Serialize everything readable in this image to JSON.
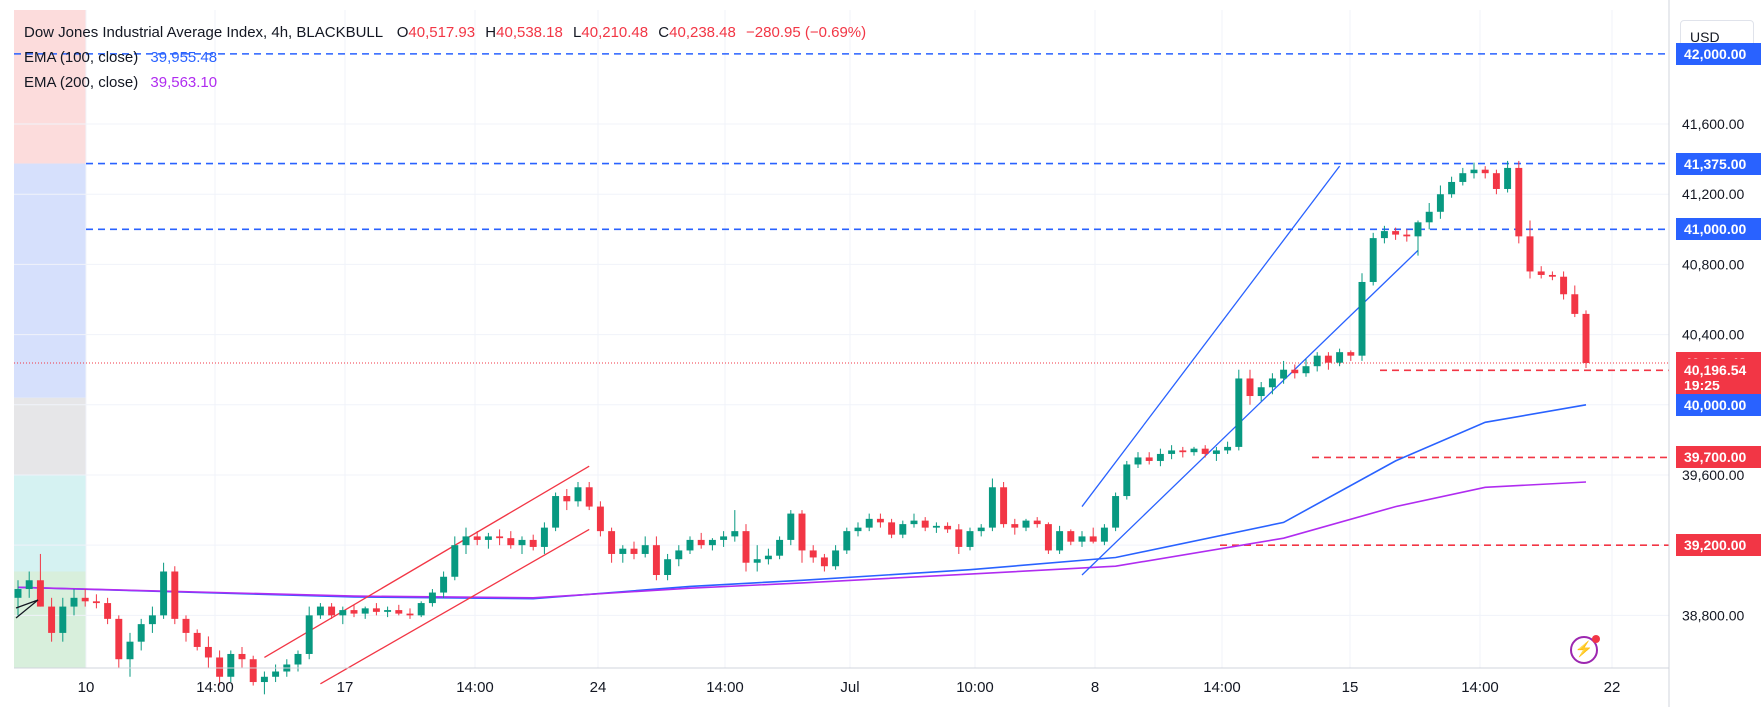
{
  "header": {
    "symbol": "Dow Jones Industrial Average Index, 4h, BLACKBULL",
    "open_key": "O",
    "open": "40,517.93",
    "high_key": "H",
    "high": "40,538.18",
    "low_key": "L",
    "low": "40,210.48",
    "close_key": "C",
    "close": "40,238.48",
    "change": "−280.95 (−0.69%)",
    "ema100_label": "EMA (100, close)",
    "ema100_value": "39,955.48",
    "ema200_label": "EMA (200, close)",
    "ema200_value": "39,563.10"
  },
  "currency": "USD",
  "countdown": "19:25",
  "chart_data": {
    "type": "candlestick",
    "y_axis_ticks": [
      "41,600.00",
      "41,200.00",
      "40,800.00",
      "40,400.00",
      "40,000.00",
      "39,600.00",
      "38,800.00"
    ],
    "x_axis_ticks": [
      "10",
      "14:00",
      "17",
      "14:00",
      "24",
      "14:00",
      "Jul",
      "10:00",
      "8",
      "14:00",
      "15",
      "14:00",
      "22"
    ],
    "ylim": [
      38500,
      42250
    ],
    "grid": true,
    "price_levels": [
      {
        "label": "42,000.00",
        "value": 42000,
        "color": "blue"
      },
      {
        "label": "41,375.00",
        "value": 41375,
        "color": "blue"
      },
      {
        "label": "41,000.00",
        "value": 41000,
        "color": "blue"
      },
      {
        "label": "40,238.48",
        "value": 40238.48,
        "color": "red"
      },
      {
        "label": "40,196.54",
        "value": 40196.54,
        "color": "red"
      },
      {
        "label": "40,000.00",
        "value": 40000,
        "color": "blue"
      },
      {
        "label": "39,700.00",
        "value": 39700,
        "color": "red"
      },
      {
        "label": "39,200.00",
        "value": 39200,
        "color": "red"
      }
    ],
    "candles": [
      [
        38900,
        39000,
        38800,
        38950
      ],
      [
        38950,
        39050,
        38900,
        39000
      ],
      [
        39000,
        39150,
        38850,
        38850
      ],
      [
        38850,
        38900,
        38650,
        38700
      ],
      [
        38700,
        38900,
        38650,
        38850
      ],
      [
        38850,
        38950,
        38800,
        38900
      ],
      [
        38900,
        38950,
        38850,
        38880
      ],
      [
        38880,
        38920,
        38840,
        38870
      ],
      [
        38870,
        38900,
        38750,
        38780
      ],
      [
        38780,
        38800,
        38500,
        38550
      ],
      [
        38550,
        38700,
        38450,
        38650
      ],
      [
        38650,
        38780,
        38600,
        38750
      ],
      [
        38750,
        38850,
        38700,
        38800
      ],
      [
        38800,
        39100,
        38780,
        39050
      ],
      [
        39050,
        39080,
        38750,
        38780
      ],
      [
        38780,
        38800,
        38650,
        38700
      ],
      [
        38700,
        38720,
        38600,
        38620
      ],
      [
        38620,
        38680,
        38500,
        38560
      ],
      [
        38560,
        38600,
        38400,
        38450
      ],
      [
        38450,
        38600,
        38420,
        38580
      ],
      [
        38580,
        38620,
        38500,
        38550
      ],
      [
        38550,
        38570,
        38400,
        38420
      ],
      [
        38420,
        38480,
        38350,
        38450
      ],
      [
        38450,
        38520,
        38420,
        38480
      ],
      [
        38480,
        38550,
        38450,
        38520
      ],
      [
        38520,
        38600,
        38480,
        38580
      ],
      [
        38580,
        38850,
        38550,
        38800
      ],
      [
        38800,
        38870,
        38780,
        38850
      ],
      [
        38850,
        38870,
        38780,
        38800
      ],
      [
        38800,
        38850,
        38750,
        38830
      ],
      [
        38830,
        38860,
        38790,
        38810
      ],
      [
        38810,
        38850,
        38780,
        38840
      ],
      [
        38840,
        38870,
        38800,
        38820
      ],
      [
        38820,
        38850,
        38790,
        38830
      ],
      [
        38830,
        38860,
        38800,
        38810
      ],
      [
        38810,
        38840,
        38780,
        38800
      ],
      [
        38800,
        38880,
        38790,
        38870
      ],
      [
        38870,
        38950,
        38850,
        38930
      ],
      [
        38930,
        39050,
        38900,
        39020
      ],
      [
        39020,
        39250,
        39000,
        39200
      ],
      [
        39200,
        39300,
        39150,
        39250
      ],
      [
        39250,
        39280,
        39200,
        39230
      ],
      [
        39230,
        39270,
        39180,
        39250
      ],
      [
        39250,
        39290,
        39200,
        39240
      ],
      [
        39240,
        39280,
        39180,
        39200
      ],
      [
        39200,
        39250,
        39150,
        39230
      ],
      [
        39230,
        39260,
        39170,
        39190
      ],
      [
        39190,
        39330,
        39150,
        39300
      ],
      [
        39300,
        39500,
        39280,
        39480
      ],
      [
        39480,
        39520,
        39400,
        39450
      ],
      [
        39450,
        39560,
        39420,
        39530
      ],
      [
        39530,
        39560,
        39400,
        39420
      ],
      [
        39420,
        39450,
        39250,
        39280
      ],
      [
        39280,
        39300,
        39100,
        39150
      ],
      [
        39150,
        39200,
        39100,
        39180
      ],
      [
        39180,
        39220,
        39120,
        39150
      ],
      [
        39150,
        39250,
        39130,
        39200
      ],
      [
        39200,
        39250,
        39000,
        39030
      ],
      [
        39030,
        39150,
        39000,
        39120
      ],
      [
        39120,
        39200,
        39080,
        39170
      ],
      [
        39170,
        39250,
        39150,
        39230
      ],
      [
        39230,
        39270,
        39180,
        39200
      ],
      [
        39200,
        39240,
        39170,
        39230
      ],
      [
        39230,
        39280,
        39190,
        39250
      ],
      [
        39250,
        39400,
        39220,
        39280
      ],
      [
        39280,
        39320,
        39050,
        39100
      ],
      [
        39100,
        39200,
        39050,
        39120
      ],
      [
        39120,
        39180,
        39090,
        39140
      ],
      [
        39140,
        39250,
        39120,
        39230
      ],
      [
        39230,
        39400,
        39200,
        39380
      ],
      [
        39380,
        39400,
        39100,
        39170
      ],
      [
        39170,
        39200,
        39100,
        39130
      ],
      [
        39130,
        39150,
        39050,
        39080
      ],
      [
        39080,
        39200,
        39060,
        39170
      ],
      [
        39170,
        39300,
        39150,
        39280
      ],
      [
        39280,
        39330,
        39250,
        39300
      ],
      [
        39300,
        39380,
        39280,
        39350
      ],
      [
        39350,
        39380,
        39300,
        39330
      ],
      [
        39330,
        39350,
        39240,
        39260
      ],
      [
        39260,
        39340,
        39240,
        39320
      ],
      [
        39320,
        39380,
        39300,
        39340
      ],
      [
        39340,
        39360,
        39280,
        39300
      ],
      [
        39300,
        39330,
        39270,
        39310
      ],
      [
        39310,
        39330,
        39270,
        39290
      ],
      [
        39290,
        39320,
        39150,
        39190
      ],
      [
        39190,
        39300,
        39170,
        39280
      ],
      [
        39280,
        39320,
        39250,
        39300
      ],
      [
        39300,
        39580,
        39280,
        39530
      ],
      [
        39530,
        39560,
        39300,
        39320
      ],
      [
        39320,
        39350,
        39260,
        39300
      ],
      [
        39300,
        39350,
        39280,
        39340
      ],
      [
        39340,
        39360,
        39300,
        39320
      ],
      [
        39320,
        39330,
        39150,
        39170
      ],
      [
        39170,
        39310,
        39150,
        39280
      ],
      [
        39280,
        39290,
        39200,
        39220
      ],
      [
        39220,
        39280,
        39190,
        39250
      ],
      [
        39250,
        39300,
        39210,
        39220
      ],
      [
        39220,
        39320,
        39200,
        39300
      ],
      [
        39300,
        39500,
        39280,
        39480
      ],
      [
        39480,
        39680,
        39460,
        39660
      ],
      [
        39660,
        39730,
        39640,
        39700
      ],
      [
        39700,
        39730,
        39660,
        39680
      ],
      [
        39680,
        39750,
        39650,
        39720
      ],
      [
        39720,
        39770,
        39690,
        39740
      ],
      [
        39740,
        39760,
        39700,
        39730
      ],
      [
        39730,
        39760,
        39710,
        39750
      ],
      [
        39750,
        39770,
        39700,
        39720
      ],
      [
        39720,
        39760,
        39680,
        39740
      ],
      [
        39740,
        39790,
        39720,
        39760
      ],
      [
        39760,
        40200,
        39740,
        40150
      ],
      [
        40150,
        40200,
        40000,
        40050
      ],
      [
        40050,
        40130,
        40020,
        40100
      ],
      [
        40100,
        40180,
        40060,
        40150
      ],
      [
        40150,
        40250,
        40120,
        40200
      ],
      [
        40200,
        40230,
        40150,
        40180
      ],
      [
        40180,
        40260,
        40160,
        40220
      ],
      [
        40220,
        40300,
        40190,
        40280
      ],
      [
        40280,
        40300,
        40200,
        40240
      ],
      [
        40240,
        40320,
        40220,
        40300
      ],
      [
        40300,
        40310,
        40250,
        40280
      ],
      [
        40280,
        40750,
        40250,
        40700
      ],
      [
        40700,
        40980,
        40680,
        40950
      ],
      [
        40950,
        41020,
        40920,
        40990
      ],
      [
        40990,
        41010,
        40940,
        40970
      ],
      [
        40970,
        41000,
        40930,
        40960
      ],
      [
        40960,
        41050,
        40850,
        41040
      ],
      [
        41040,
        41150,
        41000,
        41100
      ],
      [
        41100,
        41250,
        41060,
        41200
      ],
      [
        41200,
        41300,
        41180,
        41270
      ],
      [
        41270,
        41350,
        41250,
        41320
      ],
      [
        41320,
        41380,
        41290,
        41340
      ],
      [
        41340,
        41360,
        41290,
        41320
      ],
      [
        41320,
        41340,
        41200,
        41230
      ],
      [
        41230,
        41390,
        41210,
        41350
      ],
      [
        41350,
        41390,
        40920,
        40960
      ],
      [
        40960,
        41050,
        40720,
        40760
      ],
      [
        40760,
        40790,
        40720,
        40740
      ],
      [
        40740,
        40760,
        40710,
        40730
      ],
      [
        40730,
        40760,
        40600,
        40630
      ],
      [
        40630,
        40680,
        40500,
        40518
      ],
      [
        40518,
        40538,
        40210,
        40238
      ]
    ],
    "series": [
      {
        "name": "EMA (100, close)",
        "values": [
          [
            0,
            38960
          ],
          [
            30,
            38905
          ],
          [
            46,
            38895
          ],
          [
            60,
            38965
          ],
          [
            70,
            39000
          ],
          [
            85,
            39060
          ],
          [
            98,
            39130
          ],
          [
            113,
            39330
          ],
          [
            123,
            39680
          ],
          [
            131,
            39900
          ],
          [
            140,
            40000
          ]
        ]
      },
      {
        "name": "EMA (200, close)",
        "values": [
          [
            0,
            38960
          ],
          [
            30,
            38910
          ],
          [
            46,
            38900
          ],
          [
            60,
            38955
          ],
          [
            70,
            38985
          ],
          [
            85,
            39035
          ],
          [
            98,
            39080
          ],
          [
            113,
            39240
          ],
          [
            123,
            39420
          ],
          [
            131,
            39530
          ],
          [
            140,
            39560
          ]
        ]
      }
    ],
    "colors": {
      "up": "#089981",
      "down": "#f23645",
      "ema100": "#2962ff",
      "ema200": "#b02cf0",
      "level_blue": "#2962ff",
      "level_red": "#f23645",
      "channel_red": "#f23645",
      "channel_blue": "#2962ff"
    }
  }
}
